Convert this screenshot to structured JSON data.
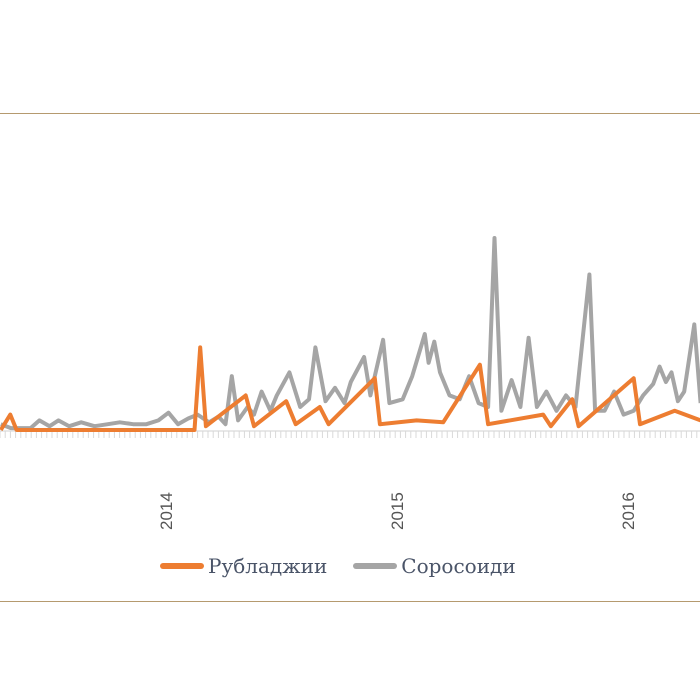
{
  "chart_data": {
    "type": "line",
    "title": "",
    "xlabel": "",
    "ylabel": "",
    "x_tick_labels": [
      "2014",
      "2015",
      "2016"
    ],
    "grid": false,
    "legend_position": "bottom",
    "colors": {
      "Рубладжии": "#ed7d31",
      "Соросоиди": "#a5a5a5",
      "frame": "#b59a6f"
    },
    "series": [
      {
        "name": "Соросоиди",
        "color": "#a5a5a5",
        "points": [
          [
            "2013-04-15",
            3
          ],
          [
            "2013-05-01",
            1
          ],
          [
            "2013-06-01",
            1
          ],
          [
            "2013-06-15",
            5
          ],
          [
            "2013-07-01",
            2
          ],
          [
            "2013-07-15",
            5
          ],
          [
            "2013-08-01",
            2
          ],
          [
            "2013-08-20",
            4
          ],
          [
            "2013-09-10",
            2
          ],
          [
            "2013-10-01",
            3
          ],
          [
            "2013-10-20",
            4
          ],
          [
            "2013-11-10",
            3
          ],
          [
            "2013-12-01",
            3
          ],
          [
            "2013-12-20",
            5
          ],
          [
            "2014-01-05",
            9
          ],
          [
            "2014-01-20",
            3
          ],
          [
            "2014-02-05",
            6
          ],
          [
            "2014-02-20",
            8
          ],
          [
            "2014-03-10",
            4
          ],
          [
            "2014-03-25",
            7
          ],
          [
            "2014-04-05",
            3
          ],
          [
            "2014-04-15",
            28
          ],
          [
            "2014-04-25",
            5
          ],
          [
            "2014-05-10",
            12
          ],
          [
            "2014-05-20",
            8
          ],
          [
            "2014-06-01",
            20
          ],
          [
            "2014-06-15",
            10
          ],
          [
            "2014-06-25",
            18
          ],
          [
            "2014-07-15",
            30
          ],
          [
            "2014-08-01",
            12
          ],
          [
            "2014-08-15",
            16
          ],
          [
            "2014-08-25",
            43
          ],
          [
            "2014-09-10",
            15
          ],
          [
            "2014-09-25",
            22
          ],
          [
            "2014-10-10",
            14
          ],
          [
            "2014-10-20",
            25
          ],
          [
            "2014-11-10",
            38
          ],
          [
            "2014-11-20",
            18
          ],
          [
            "2014-12-10",
            47
          ],
          [
            "2014-12-20",
            14
          ],
          [
            "2015-01-10",
            16
          ],
          [
            "2015-01-25",
            28
          ],
          [
            "2015-02-14",
            50
          ],
          [
            "2015-02-20",
            35
          ],
          [
            "2015-03-01",
            46
          ],
          [
            "2015-03-10",
            30
          ],
          [
            "2015-03-25",
            18
          ],
          [
            "2015-04-10",
            16
          ],
          [
            "2015-04-25",
            28
          ],
          [
            "2015-05-10",
            14
          ],
          [
            "2015-05-25",
            12
          ],
          [
            "2015-06-04",
            100
          ],
          [
            "2015-06-15",
            10
          ],
          [
            "2015-07-01",
            26
          ],
          [
            "2015-07-15",
            12
          ],
          [
            "2015-07-28",
            48
          ],
          [
            "2015-08-10",
            12
          ],
          [
            "2015-08-25",
            20
          ],
          [
            "2015-09-10",
            10
          ],
          [
            "2015-09-25",
            18
          ],
          [
            "2015-10-10",
            12
          ],
          [
            "2015-11-01",
            81
          ],
          [
            "2015-11-10",
            10
          ],
          [
            "2015-11-25",
            10
          ],
          [
            "2015-12-10",
            20
          ],
          [
            "2015-12-25",
            8
          ],
          [
            "2016-01-10",
            10
          ],
          [
            "2016-01-25",
            18
          ],
          [
            "2016-02-10",
            24
          ],
          [
            "2016-02-20",
            33
          ],
          [
            "2016-03-01",
            25
          ],
          [
            "2016-03-10",
            30
          ],
          [
            "2016-03-20",
            15
          ],
          [
            "2016-03-30",
            20
          ],
          [
            "2016-04-15",
            55
          ],
          [
            "2016-04-25",
            14
          ]
        ]
      },
      {
        "name": "Рубладжии",
        "color": "#ed7d31",
        "points": [
          [
            "2013-04-15",
            0
          ],
          [
            "2013-04-30",
            8
          ],
          [
            "2013-05-10",
            0
          ],
          [
            "2014-02-15",
            0
          ],
          [
            "2014-02-24",
            43
          ],
          [
            "2014-03-05",
            2
          ],
          [
            "2014-05-07",
            18
          ],
          [
            "2014-05-20",
            2
          ],
          [
            "2014-07-10",
            15
          ],
          [
            "2014-07-25",
            3
          ],
          [
            "2014-09-01",
            12
          ],
          [
            "2014-09-15",
            3
          ],
          [
            "2014-11-27",
            27
          ],
          [
            "2014-12-05",
            3
          ],
          [
            "2015-02-01",
            5
          ],
          [
            "2015-03-15",
            4
          ],
          [
            "2015-05-12",
            34
          ],
          [
            "2015-05-25",
            3
          ],
          [
            "2015-08-20",
            8
          ],
          [
            "2015-09-01",
            2
          ],
          [
            "2015-10-05",
            16
          ],
          [
            "2015-10-15",
            2
          ],
          [
            "2016-01-10",
            27
          ],
          [
            "2016-01-20",
            3
          ],
          [
            "2016-03-15",
            10
          ],
          [
            "2016-04-25",
            5
          ]
        ]
      }
    ]
  },
  "legend": {
    "items": [
      "Рубладжии",
      "Соросоиди"
    ]
  }
}
